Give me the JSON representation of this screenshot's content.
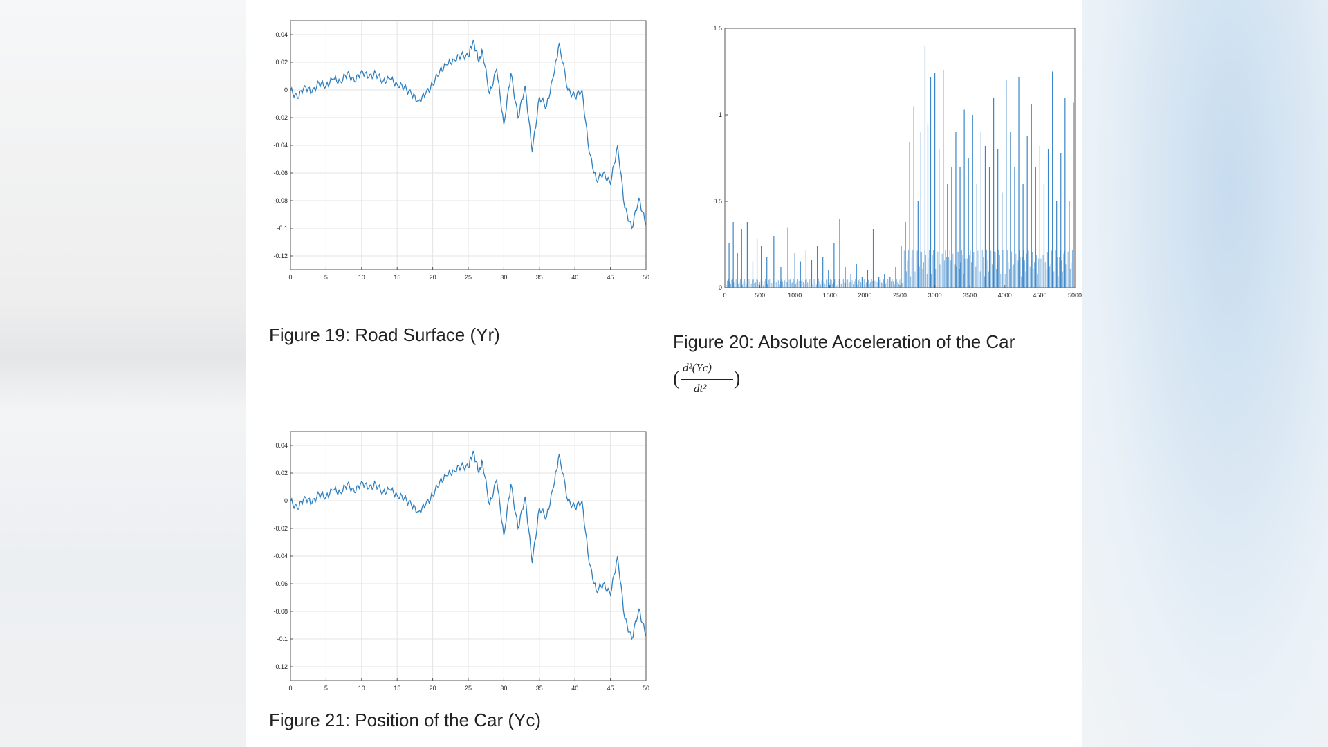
{
  "figures": [
    {
      "id": "fig19",
      "caption": "Figure 19: Road Surface (Yr)",
      "chart_data": {
        "type": "line",
        "title": "",
        "xlabel": "",
        "ylabel": "",
        "xlim": [
          0,
          50
        ],
        "ylim": [
          -0.13,
          0.05
        ],
        "grid": true,
        "xticks": [
          "0",
          "5",
          "10",
          "15",
          "20",
          "25",
          "30",
          "35",
          "40",
          "45",
          "50"
        ],
        "yticks": [
          "0.04",
          "0.02",
          "0",
          "-0.02",
          "-0.04",
          "-0.06",
          "-0.08",
          "-0.1",
          "-0.12"
        ],
        "x": [
          0,
          1,
          2,
          3,
          4,
          5,
          6,
          7,
          8,
          9,
          10,
          11,
          12,
          13,
          14,
          15,
          16,
          17,
          18,
          19,
          20,
          21,
          22,
          23,
          24,
          25,
          25.7,
          26.5,
          27,
          28,
          29,
          30,
          31,
          32,
          33,
          34,
          35,
          36,
          37,
          37.8,
          39,
          40,
          41,
          42,
          43,
          44,
          45,
          46,
          47,
          48,
          49,
          50
        ],
        "values": [
          0.0,
          -0.006,
          0.003,
          -0.002,
          0.005,
          0.003,
          0.008,
          0.006,
          0.012,
          0.006,
          0.014,
          0.009,
          0.012,
          0.006,
          0.008,
          0.004,
          0.002,
          -0.003,
          -0.008,
          -0.003,
          0.004,
          0.014,
          0.018,
          0.022,
          0.025,
          0.024,
          0.036,
          0.02,
          0.028,
          -0.003,
          0.015,
          -0.025,
          0.012,
          -0.02,
          0.003,
          -0.045,
          -0.005,
          -0.012,
          0.01,
          0.034,
          0.0,
          -0.005,
          0.0,
          -0.045,
          -0.065,
          -0.06,
          -0.068,
          -0.04,
          -0.085,
          -0.1,
          -0.078,
          -0.098
        ]
      }
    },
    {
      "id": "fig20",
      "caption": "Figure 20: Absolute Acceleration of the Car",
      "formula_numerator": "d²(Yc)",
      "formula_denominator": "dt²",
      "formula_open": "(",
      "formula_close": ")",
      "chart_data": {
        "type": "bar",
        "title": "",
        "xlabel": "",
        "ylabel": "",
        "xlim": [
          0,
          5000
        ],
        "ylim": [
          0,
          1.5
        ],
        "grid": false,
        "xticks": [
          "0",
          "500",
          "1000",
          "1500",
          "2000",
          "2500",
          "3000",
          "3500",
          "4000",
          "4500",
          "5000"
        ],
        "yticks": [
          "1.5",
          "1",
          "0.5",
          "0"
        ],
        "x": [
          60,
          120,
          180,
          240,
          320,
          400,
          460,
          520,
          600,
          700,
          800,
          900,
          1000,
          1080,
          1160,
          1240,
          1320,
          1400,
          1480,
          1560,
          1640,
          1720,
          1800,
          1880,
          1960,
          2040,
          2120,
          2200,
          2280,
          2360,
          2440,
          2520,
          2580,
          2640,
          2700,
          2760,
          2800,
          2860,
          2900,
          2940,
          3000,
          3060,
          3120,
          3180,
          3240,
          3300,
          3360,
          3420,
          3480,
          3540,
          3600,
          3660,
          3720,
          3780,
          3840,
          3900,
          3960,
          4020,
          4080,
          4140,
          4200,
          4260,
          4320,
          4380,
          4440,
          4500,
          4560,
          4620,
          4680,
          4740,
          4800,
          4860,
          4920,
          4980
        ],
        "values": [
          0.26,
          0.38,
          0.2,
          0.34,
          0.38,
          0.15,
          0.28,
          0.24,
          0.18,
          0.3,
          0.12,
          0.35,
          0.2,
          0.15,
          0.22,
          0.16,
          0.24,
          0.18,
          0.1,
          0.26,
          0.4,
          0.12,
          0.08,
          0.14,
          0.06,
          0.1,
          0.34,
          0.06,
          0.08,
          0.06,
          0.12,
          0.24,
          0.38,
          0.84,
          1.05,
          0.5,
          0.9,
          1.4,
          0.95,
          1.22,
          1.24,
          0.8,
          1.26,
          0.6,
          0.7,
          0.9,
          0.7,
          1.03,
          0.75,
          1.0,
          0.6,
          0.9,
          0.82,
          0.7,
          1.1,
          0.8,
          0.55,
          1.2,
          0.9,
          0.7,
          1.22,
          0.6,
          0.88,
          1.06,
          0.7,
          0.82,
          0.6,
          0.8,
          1.25,
          0.5,
          0.78,
          1.1,
          0.5,
          1.07
        ]
      }
    },
    {
      "id": "fig21",
      "caption": "Figure 21: Position of the Car (Yc)",
      "chart_data": {
        "type": "line",
        "title": "",
        "xlabel": "",
        "ylabel": "",
        "xlim": [
          0,
          50
        ],
        "ylim": [
          -0.13,
          0.05
        ],
        "grid": true,
        "xticks": [
          "0",
          "5",
          "10",
          "15",
          "20",
          "25",
          "30",
          "35",
          "40",
          "45",
          "50"
        ],
        "yticks": [
          "0.04",
          "0.02",
          "0",
          "-0.02",
          "-0.04",
          "-0.06",
          "-0.08",
          "-0.1",
          "-0.12"
        ],
        "x": [
          0,
          1,
          2,
          3,
          4,
          5,
          6,
          7,
          8,
          9,
          10,
          11,
          12,
          13,
          14,
          15,
          16,
          17,
          18,
          19,
          20,
          21,
          22,
          23,
          24,
          25,
          25.7,
          26.5,
          27,
          28,
          29,
          30,
          31,
          32,
          33,
          34,
          35,
          36,
          37,
          37.8,
          39,
          40,
          41,
          42,
          43,
          44,
          45,
          46,
          47,
          48,
          49,
          50
        ],
        "values": [
          0.0,
          -0.006,
          0.003,
          -0.002,
          0.005,
          0.003,
          0.008,
          0.006,
          0.012,
          0.006,
          0.014,
          0.009,
          0.012,
          0.006,
          0.008,
          0.004,
          0.002,
          -0.003,
          -0.008,
          -0.003,
          0.004,
          0.014,
          0.018,
          0.022,
          0.025,
          0.024,
          0.036,
          0.02,
          0.028,
          -0.003,
          0.015,
          -0.025,
          0.012,
          -0.02,
          0.003,
          -0.045,
          -0.005,
          -0.012,
          0.01,
          0.034,
          0.0,
          -0.005,
          0.0,
          -0.045,
          -0.065,
          -0.06,
          -0.068,
          -0.04,
          -0.085,
          -0.1,
          -0.078,
          -0.098
        ]
      }
    }
  ],
  "colors": {
    "line": "#2f7fbf",
    "bar": "#3a86c8",
    "grid": "#e3e3e3",
    "axis": "#555555"
  }
}
